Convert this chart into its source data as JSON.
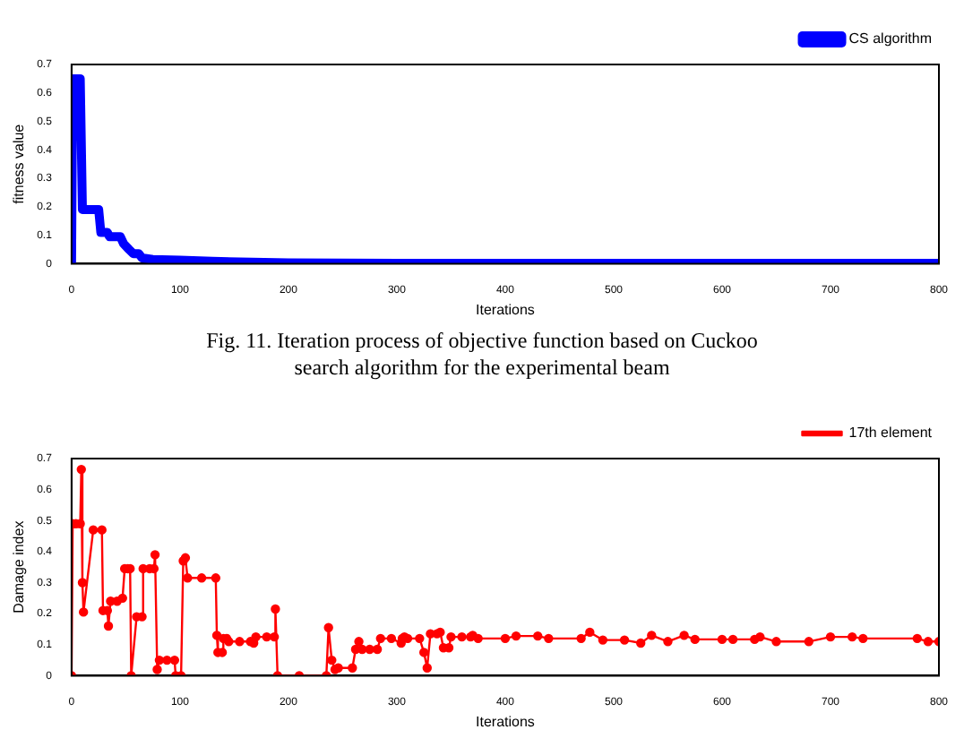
{
  "chart_data": [
    {
      "type": "line",
      "xlabel": "Iterations",
      "ylabel": "fitness value",
      "legend": "top right",
      "marker": "none",
      "grid": false,
      "xlim": [
        0,
        800
      ],
      "xticks": [
        0,
        100,
        200,
        300,
        400,
        500,
        600,
        700,
        800
      ],
      "ylim": [
        0,
        0.7
      ],
      "yticks": [
        0,
        0.1,
        0.2,
        0.3,
        0.4,
        0.5,
        0.6,
        0.7
      ],
      "series": [
        {
          "name": "CS algorithm",
          "color": "#0000ff",
          "x": [
            0,
            1,
            8,
            10,
            25,
            27,
            33,
            35,
            45,
            48,
            53,
            57,
            62,
            65,
            75,
            100,
            130,
            200,
            300,
            800
          ],
          "values": [
            0,
            0.65,
            0.65,
            0.19,
            0.19,
            0.11,
            0.11,
            0.095,
            0.095,
            0.07,
            0.05,
            0.035,
            0.035,
            0.02,
            0.015,
            0.012,
            0.008,
            0.003,
            0.001,
            0.001
          ]
        }
      ],
      "annotations": [
        "Fig. 11. Iteration process of objective function based on Cuckoo search algorithm for the experimental beam"
      ]
    },
    {
      "type": "line",
      "xlabel": "Iterations",
      "ylabel": "Damage index",
      "legend": "top right",
      "marker": "circle",
      "grid": false,
      "xlim": [
        0,
        800
      ],
      "xticks": [
        0,
        100,
        200,
        300,
        400,
        500,
        600,
        700,
        800
      ],
      "ylim": [
        0,
        0.7
      ],
      "yticks": [
        0,
        0.1,
        0.2,
        0.3,
        0.4,
        0.5,
        0.6,
        0.7
      ],
      "series": [
        {
          "name": "17th element",
          "color": "#ff0000",
          "x": [
            0,
            1,
            4,
            8,
            9,
            10,
            11,
            20,
            28,
            29,
            33,
            34,
            36,
            42,
            47,
            49,
            52,
            54,
            55,
            60,
            65,
            66,
            72,
            76,
            77,
            79,
            81,
            88,
            95,
            96,
            101,
            103,
            105,
            107,
            120,
            133,
            134,
            135,
            139,
            140,
            143,
            145,
            155,
            165,
            168,
            170,
            180,
            187,
            188,
            190,
            210,
            235,
            237,
            240,
            243,
            246,
            259,
            262,
            265,
            268,
            275,
            282,
            285,
            295,
            304,
            305,
            307,
            310,
            321,
            325,
            328,
            331,
            337,
            340,
            343,
            348,
            350,
            360,
            368,
            370,
            375,
            400,
            410,
            430,
            440,
            470,
            478,
            490,
            510,
            525,
            535,
            550,
            565,
            575,
            600,
            610,
            630,
            635,
            650,
            680,
            700,
            720,
            730,
            780,
            790,
            800
          ],
          "values": [
            0,
            0.49,
            0.49,
            0.49,
            0.665,
            0.3,
            0.205,
            0.47,
            0.47,
            0.21,
            0.21,
            0.16,
            0.24,
            0.24,
            0.25,
            0.345,
            0.345,
            0.345,
            0,
            0.19,
            0.19,
            0.345,
            0.345,
            0.345,
            0.39,
            0.02,
            0.05,
            0.05,
            0.05,
            0,
            0,
            0.37,
            0.38,
            0.315,
            0.315,
            0.315,
            0.13,
            0.075,
            0.075,
            0.12,
            0.12,
            0.11,
            0.11,
            0.11,
            0.105,
            0.125,
            0.125,
            0.125,
            0.215,
            0,
            0,
            0,
            0.155,
            0.05,
            0.02,
            0.025,
            0.025,
            0.085,
            0.11,
            0.085,
            0.085,
            0.085,
            0.12,
            0.12,
            0.105,
            0.12,
            0.125,
            0.12,
            0.12,
            0.075,
            0.025,
            0.135,
            0.135,
            0.14,
            0.09,
            0.09,
            0.125,
            0.125,
            0.125,
            0.13,
            0.12,
            0.12,
            0.128,
            0.128,
            0.12,
            0.12,
            0.14,
            0.115,
            0.115,
            0.105,
            0.13,
            0.11,
            0.13,
            0.117,
            0.117,
            0.117,
            0.117,
            0.125,
            0.11,
            0.11,
            0.125,
            0.125,
            0.12,
            0.12,
            0.11,
            0.11
          ]
        }
      ]
    }
  ]
}
